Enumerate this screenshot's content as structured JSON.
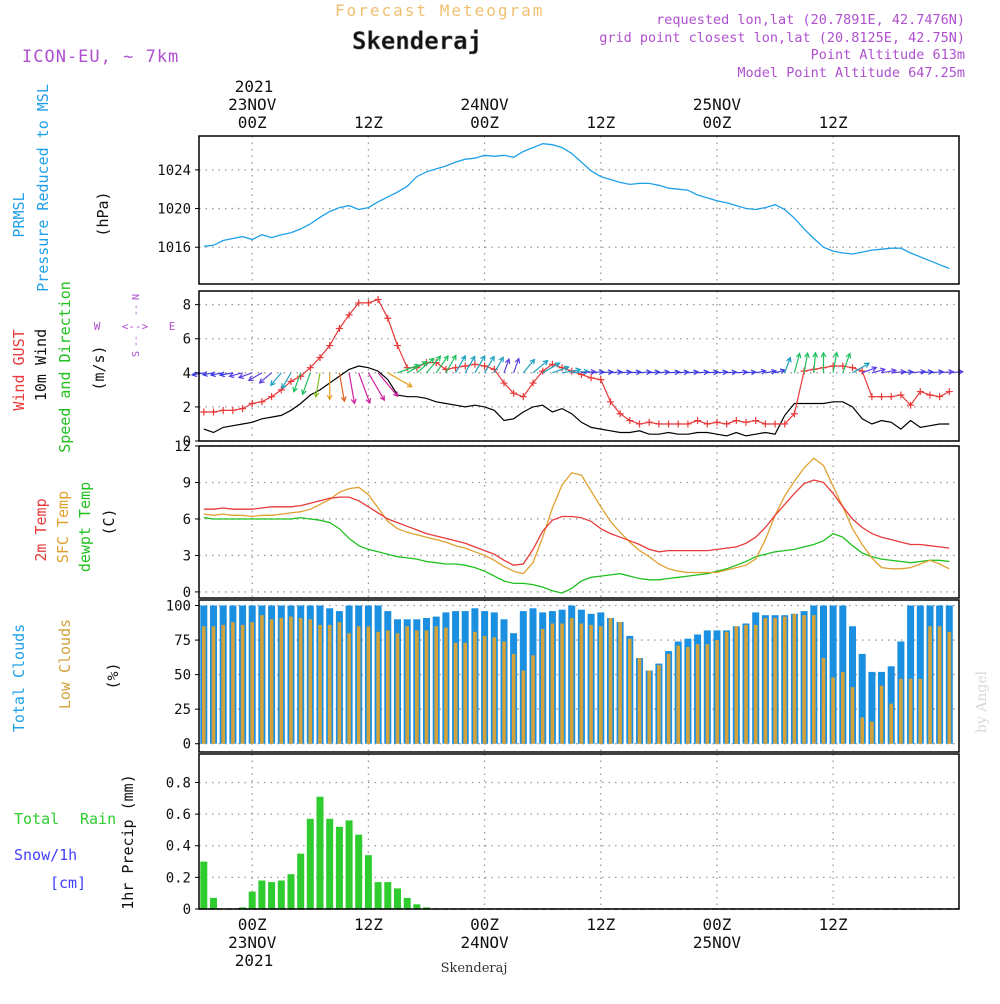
{
  "header": {
    "product": "Forecast Meteogram",
    "location": "Skenderaj",
    "model": "ICON-EU, ~ 7km",
    "requested": "requested lon,lat (20.7891E, 42.7476N)",
    "grid": "grid point closest lon,lat (20.8125E, 42.75N)",
    "point_alt": "Point Altitude 613m",
    "model_alt": "Model Point Altitude 647.25m",
    "credit": "by Angel",
    "bottom_location": "Skenderaj"
  },
  "colors": {
    "pressure": "#1fa0e8",
    "gust": "#e83a3a",
    "wind10m": "#000000",
    "temp2m": "#e83a3a",
    "sfc": "#e0a030",
    "dewpt": "#20c020",
    "total_cloud": "#1b8fe0",
    "low_cloud": "#d4a23a",
    "rain": "#2ecc2e",
    "snow": "#4040ff",
    "compass": "#9b59d0",
    "header_orange": "#f0c070",
    "header_purple": "#b050d0"
  },
  "time_axis": {
    "top_year": "2021",
    "top_days": [
      {
        "label": "23NOV",
        "t": 0
      },
      {
        "label": "24NOV",
        "t": 24
      },
      {
        "label": "25NOV",
        "t": 48
      }
    ],
    "hour_ticks": [
      {
        "label": "00Z",
        "t": 0
      },
      {
        "label": "12Z",
        "t": 12
      },
      {
        "label": "00Z",
        "t": 24
      },
      {
        "label": "12Z",
        "t": 36
      },
      {
        "label": "00Z",
        "t": 48
      },
      {
        "label": "12Z",
        "t": 60
      }
    ],
    "bottom_days": [
      {
        "label": "23NOV",
        "t": 0
      },
      {
        "label": "24NOV",
        "t": 24
      },
      {
        "label": "25NOV",
        "t": 48
      }
    ],
    "bottom_year": "2021",
    "t_start": -5.5,
    "t_end": 73
  },
  "chart_data": [
    {
      "type": "line",
      "name": "pressure",
      "labels": [
        "PRMSL",
        "Pressure Reduced to MSL",
        "(hPa)"
      ],
      "ylim": [
        1012.2,
        1027.5
      ],
      "yticks": [
        1016,
        1020,
        1024
      ],
      "x": [
        -5,
        -4,
        -3,
        -2,
        -1,
        0,
        1,
        2,
        3,
        4,
        5,
        6,
        7,
        8,
        9,
        10,
        11,
        12,
        13,
        14,
        15,
        16,
        17,
        18,
        19,
        20,
        21,
        22,
        23,
        24,
        25,
        26,
        27,
        28,
        29,
        30,
        31,
        32,
        33,
        34,
        35,
        36,
        37,
        38,
        39,
        40,
        41,
        42,
        43,
        44,
        45,
        46,
        47,
        48,
        49,
        50,
        51,
        52,
        53,
        54,
        55,
        56,
        57,
        58,
        59,
        60,
        61,
        62,
        63,
        64,
        65,
        66,
        67,
        68,
        69,
        70,
        71,
        72
      ],
      "values": [
        1016.1,
        1016.2,
        1016.7,
        1016.9,
        1017.1,
        1016.8,
        1017.3,
        1017.0,
        1017.3,
        1017.5,
        1017.9,
        1018.4,
        1019.1,
        1019.7,
        1020.1,
        1020.3,
        1019.9,
        1020.1,
        1020.7,
        1021.2,
        1021.7,
        1022.3,
        1023.3,
        1023.8,
        1024.1,
        1024.4,
        1024.8,
        1025.1,
        1025.2,
        1025.5,
        1025.4,
        1025.5,
        1025.3,
        1025.9,
        1026.3,
        1026.7,
        1026.6,
        1026.3,
        1025.7,
        1024.8,
        1023.9,
        1023.3,
        1023.0,
        1022.7,
        1022.5,
        1022.6,
        1022.6,
        1022.4,
        1022.1,
        1022.0,
        1021.9,
        1021.4,
        1021.1,
        1020.8,
        1020.6,
        1020.3,
        1020.0,
        1019.9,
        1020.1,
        1020.4,
        1019.9,
        1019.0,
        1017.9,
        1016.9,
        1016.0,
        1015.6,
        1015.4,
        1015.3,
        1015.5,
        1015.7,
        1015.8,
        1015.9,
        1015.9,
        1015.4,
        1015.0,
        1014.6,
        1014.2,
        1013.8
      ]
    },
    {
      "type": "line",
      "name": "wind",
      "labels": [
        "Wind GUST",
        "10m Wind",
        "Speed and Direction",
        "(m/s)"
      ],
      "compass": {
        "n": "N",
        "s": "S",
        "w": "W",
        "e": "E",
        "ns": "--",
        "we": "<-->"
      },
      "ylim": [
        0,
        8.8
      ],
      "yticks": [
        0,
        2,
        4,
        6,
        8
      ],
      "x": [
        -5,
        -4,
        -3,
        -2,
        -1,
        0,
        1,
        2,
        3,
        4,
        5,
        6,
        7,
        8,
        9,
        10,
        11,
        12,
        13,
        14,
        15,
        16,
        17,
        18,
        19,
        20,
        21,
        22,
        23,
        24,
        25,
        26,
        27,
        28,
        29,
        30,
        31,
        32,
        33,
        34,
        35,
        36,
        37,
        38,
        39,
        40,
        41,
        42,
        43,
        44,
        45,
        46,
        47,
        48,
        49,
        50,
        51,
        52,
        53,
        54,
        55,
        56,
        57,
        58,
        59,
        60,
        61,
        62,
        63,
        64,
        65,
        66,
        67,
        68,
        69,
        70,
        71,
        72
      ],
      "gust": [
        1.7,
        1.7,
        1.8,
        1.8,
        1.9,
        2.2,
        2.3,
        2.6,
        3.0,
        3.5,
        3.8,
        4.3,
        4.9,
        5.6,
        6.6,
        7.4,
        8.1,
        8.1,
        8.3,
        7.2,
        5.6,
        4.3,
        4.3,
        4.6,
        4.6,
        4.2,
        4.3,
        4.4,
        4.5,
        4.4,
        4.2,
        3.4,
        2.8,
        2.6,
        3.4,
        4.1,
        4.5,
        4.3,
        4.1,
        3.9,
        3.7,
        3.6,
        2.3,
        1.6,
        1.2,
        1.0,
        1.1,
        1.0,
        1.0,
        1.0,
        1.0,
        1.2,
        1.0,
        1.1,
        1.0,
        1.2,
        1.1,
        1.2,
        1.0,
        1.0,
        1.0,
        1.6,
        4.1,
        4.2,
        4.3,
        4.4,
        4.4,
        4.3,
        4.1,
        2.6,
        2.6,
        2.6,
        2.7,
        2.1,
        2.9,
        2.7,
        2.6,
        2.9
      ],
      "speed": [
        0.7,
        0.5,
        0.8,
        0.9,
        1.0,
        1.1,
        1.3,
        1.4,
        1.5,
        1.8,
        2.2,
        2.7,
        3.0,
        3.4,
        3.8,
        4.2,
        4.4,
        4.3,
        4.1,
        3.6,
        2.7,
        2.6,
        2.6,
        2.5,
        2.3,
        2.2,
        2.1,
        2.0,
        2.1,
        2.0,
        1.8,
        1.2,
        1.3,
        1.7,
        2.0,
        2.1,
        1.7,
        1.9,
        1.6,
        1.1,
        0.8,
        0.7,
        0.6,
        0.5,
        0.5,
        0.6,
        0.4,
        0.4,
        0.5,
        0.4,
        0.4,
        0.5,
        0.5,
        0.4,
        0.3,
        0.5,
        0.3,
        0.4,
        0.5,
        0.4,
        1.5,
        2.2,
        2.2,
        2.2,
        2.2,
        2.3,
        2.3,
        2.0,
        1.3,
        1.0,
        1.2,
        1.1,
        0.7,
        1.2,
        0.8,
        0.9,
        1.0,
        1.0
      ],
      "arrow_y": 4,
      "arrow_dir": [
        80,
        80,
        80,
        80,
        75,
        70,
        60,
        50,
        40,
        30,
        20,
        20,
        10,
        0,
        350,
        350,
        340,
        330,
        320,
        300,
        250,
        240,
        230,
        220,
        215,
        210,
        210,
        210,
        210,
        210,
        210,
        200,
        200,
        220,
        230,
        240,
        250,
        260,
        265,
        265,
        265,
        265,
        265,
        265,
        265,
        265,
        265,
        265,
        265,
        265,
        265,
        265,
        265,
        265,
        265,
        265,
        265,
        260,
        260,
        255,
        200,
        195,
        190,
        185,
        180,
        190,
        200,
        240,
        250,
        255,
        260,
        265,
        265,
        265,
        265,
        265,
        265,
        265
      ]
    },
    {
      "type": "line",
      "name": "temperature",
      "labels": [
        "2m Temp",
        "SFC Temp",
        "dewpt Temp",
        "(C)"
      ],
      "ylim": [
        -0.5,
        12
      ],
      "yticks": [
        0,
        3,
        6,
        9,
        12
      ],
      "x": [
        -5,
        -4,
        -3,
        -2,
        -1,
        0,
        1,
        2,
        3,
        4,
        5,
        6,
        7,
        8,
        9,
        10,
        11,
        12,
        13,
        14,
        15,
        16,
        17,
        18,
        19,
        20,
        21,
        22,
        23,
        24,
        25,
        26,
        27,
        28,
        29,
        30,
        31,
        32,
        33,
        34,
        35,
        36,
        37,
        38,
        39,
        40,
        41,
        42,
        43,
        44,
        45,
        46,
        47,
        48,
        49,
        50,
        51,
        52,
        53,
        54,
        55,
        56,
        57,
        58,
        59,
        60,
        61,
        62,
        63,
        64,
        65,
        66,
        67,
        68,
        69,
        70,
        71,
        72
      ],
      "temp2m": [
        6.8,
        6.8,
        6.9,
        6.8,
        6.8,
        6.8,
        6.9,
        7.0,
        7.0,
        7.0,
        7.1,
        7.3,
        7.5,
        7.7,
        7.8,
        7.8,
        7.5,
        7.0,
        6.5,
        6.0,
        5.7,
        5.4,
        5.1,
        4.8,
        4.6,
        4.4,
        4.2,
        4.0,
        3.7,
        3.4,
        3.1,
        2.6,
        2.2,
        2.3,
        3.5,
        5.0,
        5.9,
        6.2,
        6.2,
        6.1,
        5.8,
        5.2,
        4.8,
        4.5,
        4.2,
        3.9,
        3.5,
        3.3,
        3.4,
        3.4,
        3.4,
        3.4,
        3.4,
        3.5,
        3.6,
        3.7,
        4.0,
        4.5,
        5.3,
        6.3,
        7.2,
        8.1,
        8.9,
        9.2,
        9.0,
        8.1,
        7.0,
        6.0,
        5.3,
        4.8,
        4.5,
        4.3,
        4.1,
        3.9,
        3.9,
        3.8,
        3.7,
        3.6
      ],
      "sfc": [
        6.4,
        6.3,
        6.4,
        6.3,
        6.3,
        6.2,
        6.3,
        6.3,
        6.4,
        6.5,
        6.6,
        6.8,
        7.2,
        7.6,
        8.2,
        8.5,
        8.6,
        8.0,
        6.9,
        5.8,
        5.2,
        4.9,
        4.7,
        4.5,
        4.3,
        4.1,
        3.8,
        3.6,
        3.3,
        3.0,
        2.6,
        2.1,
        1.7,
        1.5,
        2.4,
        4.5,
        6.9,
        8.8,
        9.8,
        9.6,
        8.3,
        7.0,
        5.8,
        4.9,
        4.1,
        3.4,
        2.9,
        2.3,
        1.9,
        1.7,
        1.6,
        1.6,
        1.6,
        1.6,
        1.8,
        2.0,
        2.2,
        2.7,
        4.3,
        6.3,
        7.9,
        9.1,
        10.2,
        11.0,
        10.4,
        8.7,
        7.0,
        5.2,
        3.9,
        2.8,
        2.0,
        1.9,
        1.9,
        2.0,
        2.3,
        2.6,
        2.3,
        1.9
      ],
      "dewpt": [
        6.1,
        6.0,
        6.0,
        6.0,
        6.0,
        6.0,
        6.0,
        6.0,
        6.0,
        6.0,
        6.1,
        6.0,
        5.9,
        5.7,
        5.2,
        4.4,
        3.8,
        3.5,
        3.3,
        3.1,
        2.9,
        2.8,
        2.7,
        2.5,
        2.4,
        2.3,
        2.3,
        2.2,
        2.0,
        1.7,
        1.3,
        0.9,
        0.7,
        0.7,
        0.6,
        0.4,
        0.1,
        -0.1,
        0.3,
        0.9,
        1.2,
        1.3,
        1.4,
        1.5,
        1.3,
        1.1,
        1.0,
        1.0,
        1.1,
        1.2,
        1.3,
        1.4,
        1.5,
        1.7,
        1.9,
        2.2,
        2.5,
        2.9,
        3.1,
        3.3,
        3.4,
        3.5,
        3.7,
        3.9,
        4.2,
        4.8,
        4.5,
        3.8,
        3.2,
        2.9,
        2.7,
        2.6,
        2.5,
        2.4,
        2.5,
        2.6,
        2.6,
        2.5
      ]
    },
    {
      "type": "bar",
      "name": "clouds",
      "labels": [
        "Total Clouds",
        "Low Clouds",
        "(%)"
      ],
      "ylim": [
        -6,
        104
      ],
      "yticks": [
        0,
        25,
        50,
        75,
        100
      ],
      "x": [
        -5,
        -4,
        -3,
        -2,
        -1,
        0,
        1,
        2,
        3,
        4,
        5,
        6,
        7,
        8,
        9,
        10,
        11,
        12,
        13,
        14,
        15,
        16,
        17,
        18,
        19,
        20,
        21,
        22,
        23,
        24,
        25,
        26,
        27,
        28,
        29,
        30,
        31,
        32,
        33,
        34,
        35,
        36,
        37,
        38,
        39,
        40,
        41,
        42,
        43,
        44,
        45,
        46,
        47,
        48,
        49,
        50,
        51,
        52,
        53,
        54,
        55,
        56,
        57,
        58,
        59,
        60,
        61,
        62,
        63,
        64,
        65,
        66,
        67,
        68,
        69,
        70,
        71,
        72
      ],
      "total": [
        100,
        100,
        100,
        100,
        100,
        100,
        100,
        100,
        100,
        100,
        100,
        100,
        100,
        98,
        96,
        100,
        100,
        100,
        100,
        96,
        90,
        90,
        90,
        91,
        92,
        95,
        96,
        96,
        98,
        96,
        95,
        90,
        80,
        96,
        98,
        95,
        96,
        97,
        100,
        97,
        94,
        95,
        91,
        88,
        78,
        62,
        53,
        58,
        67,
        74,
        76,
        79,
        82,
        82,
        82,
        85,
        87,
        95,
        93,
        93,
        93,
        94,
        96,
        100,
        100,
        100,
        100,
        85,
        65,
        52,
        52,
        56,
        74,
        100,
        100,
        100,
        100,
        100
      ],
      "low": [
        85,
        85,
        86,
        88,
        86,
        88,
        93,
        90,
        91,
        92,
        91,
        90,
        86,
        86,
        88,
        80,
        85,
        85,
        81,
        82,
        80,
        85,
        82,
        82,
        85,
        84,
        73,
        73,
        81,
        78,
        77,
        74,
        65,
        53,
        64,
        83,
        87,
        87,
        91,
        87,
        86,
        85,
        91,
        88,
        76,
        62,
        53,
        57,
        65,
        71,
        70,
        72,
        72,
        75,
        81,
        85,
        86,
        86,
        91,
        91,
        92,
        94,
        93,
        93,
        62,
        48,
        52,
        41,
        19,
        16,
        42,
        29,
        47,
        47,
        47,
        85,
        85,
        81
      ]
    },
    {
      "type": "bar",
      "name": "precip",
      "labels": [
        "Total",
        "Rain",
        "Snow/1h",
        "[cm]",
        "1hr Precip (mm)"
      ],
      "ylim": [
        0,
        0.98
      ],
      "yticks": [
        0,
        0.2,
        0.4,
        0.6,
        0.8
      ],
      "ytick_labels": [
        "0",
        "0.2",
        "0.4",
        "0.6",
        "0.8"
      ],
      "x": [
        -5,
        -4,
        -3,
        -2,
        -1,
        0,
        1,
        2,
        3,
        4,
        5,
        6,
        7,
        8,
        9,
        10,
        11,
        12,
        13,
        14,
        15,
        16,
        17,
        18,
        19,
        20,
        21,
        22,
        23,
        24,
        25,
        26,
        27,
        28,
        29,
        30,
        31,
        32,
        33,
        34,
        35,
        36,
        37,
        38,
        39,
        40,
        41,
        42,
        43,
        44,
        45,
        46,
        47,
        48,
        49,
        50,
        51,
        52,
        53,
        54,
        55,
        56,
        57,
        58,
        59,
        60,
        61,
        62,
        63,
        64,
        65,
        66,
        67,
        68,
        69,
        70,
        71,
        72
      ],
      "rain": [
        0.3,
        0.07,
        0,
        0,
        0.01,
        0.11,
        0.18,
        0.17,
        0.18,
        0.22,
        0.35,
        0.57,
        0.71,
        0.57,
        0.52,
        0.56,
        0.47,
        0.34,
        0.17,
        0.17,
        0.13,
        0.07,
        0.03,
        0.01,
        0,
        0,
        0,
        0,
        0,
        0,
        0,
        0,
        0,
        0,
        0,
        0,
        0,
        0,
        0,
        0,
        0,
        0,
        0,
        0,
        0,
        0,
        0,
        0,
        0,
        0,
        0,
        0,
        0,
        0,
        0,
        0,
        0,
        0,
        0,
        0,
        0,
        0,
        0,
        0,
        0,
        0,
        0,
        0,
        0,
        0,
        0,
        0,
        0,
        0,
        0,
        0,
        0,
        0
      ]
    }
  ]
}
